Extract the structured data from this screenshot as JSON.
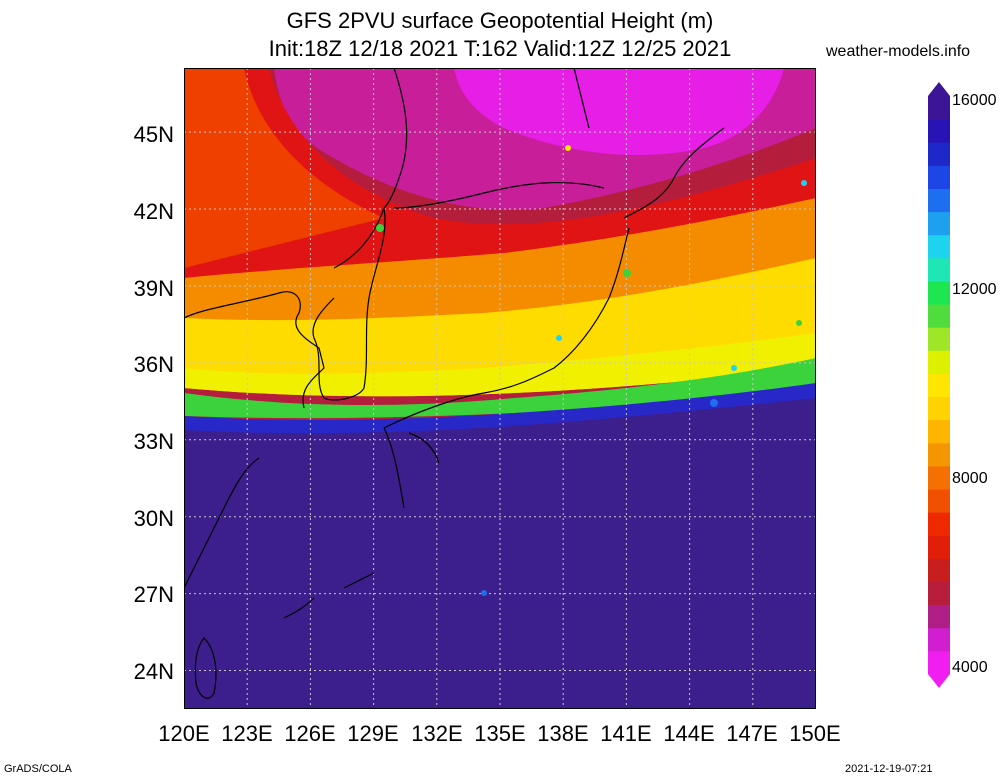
{
  "header": {
    "title_line1": "GFS 2PVU surface Geopotential Height (m)",
    "title_line2": "Init:18Z 12/18 2021 T:162 Valid:12Z 12/25 2021",
    "credit": "weather-models.info"
  },
  "map": {
    "lat_labels": [
      "45N",
      "42N",
      "39N",
      "36N",
      "33N",
      "30N",
      "27N",
      "24N"
    ],
    "lon_labels": [
      "120E",
      "123E",
      "126E",
      "129E",
      "132E",
      "135E",
      "138E",
      "141E",
      "144E",
      "147E",
      "150E"
    ],
    "lat_values": [
      45,
      42,
      39,
      36,
      33,
      30,
      27,
      24
    ],
    "lon_values": [
      120,
      123,
      126,
      129,
      132,
      135,
      138,
      141,
      144,
      147,
      150
    ],
    "extent": {
      "lon_min": 120,
      "lon_max": 150,
      "lat_min": 22.5,
      "lat_max": 47.5
    },
    "colors": {
      "low_pink": "#e81ee8",
      "purple_red": "#b02050",
      "dark_red": "#c81e1e",
      "red": "#f02800",
      "orange": "#f58c00",
      "yellow": "#ffe600",
      "green": "#3cd23c",
      "cyan": "#20d0d0",
      "blue": "#1e32d2",
      "dark_purple": "#3c1e8c",
      "land_outline": "#000000",
      "grid": "#c8c8c8"
    }
  },
  "colorbar": {
    "labels": [
      "16000",
      "12000",
      "8000",
      "4000"
    ],
    "values": [
      16000,
      12000,
      8000,
      4000
    ],
    "min": 4000,
    "max": 16000,
    "colors": [
      "#f01ef0",
      "#d01ed0",
      "#b01e88",
      "#b81e3c",
      "#c81e1e",
      "#e01e0a",
      "#f02800",
      "#f05000",
      "#f57000",
      "#f59600",
      "#ffb400",
      "#ffd200",
      "#ffe600",
      "#dcf000",
      "#a0e628",
      "#50dc3c",
      "#1ee650",
      "#1ee6b4",
      "#1ed2f0",
      "#1ea0f0",
      "#1e6ef0",
      "#1e46e6",
      "#1e28c8",
      "#2814b4",
      "#3c1496"
    ]
  },
  "footer": {
    "left": "GrADS/COLA",
    "right": "2021-12-19-07:21"
  }
}
